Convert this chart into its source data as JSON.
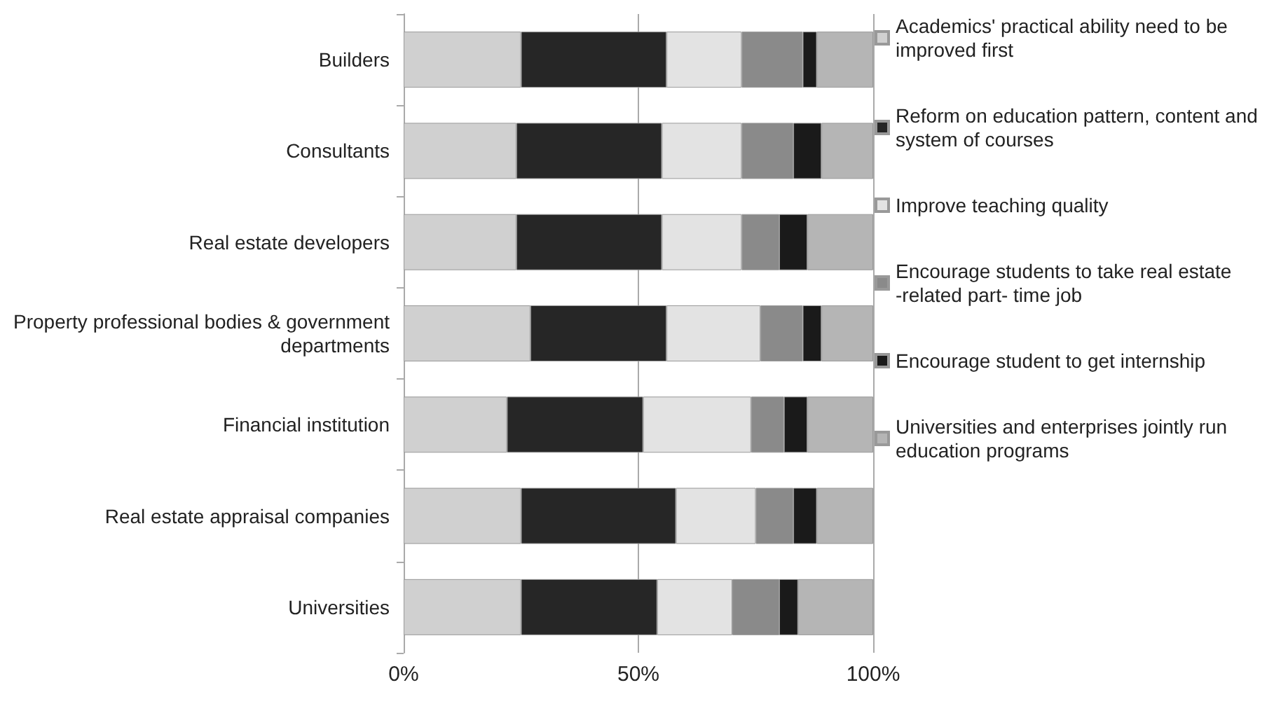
{
  "chart_data": {
    "type": "bar",
    "orientation": "horizontal",
    "stacked": true,
    "categories": [
      "Builders",
      "Consultants",
      "Real estate developers",
      "Property professional bodies & government departments",
      "Financial institution",
      "Real estate appraisal companies",
      "Universities"
    ],
    "series": [
      {
        "name": "Academics' practical ability need to be improved first",
        "color": "#d0d0d0",
        "values": [
          25,
          24,
          24,
          27,
          22,
          25,
          25
        ]
      },
      {
        "name": "Reform on education pattern, content and system of courses",
        "color": "#262626",
        "values": [
          31,
          31,
          31,
          29,
          29,
          33,
          29
        ]
      },
      {
        "name": "Improve teaching quality",
        "color": "#e3e3e3",
        "values": [
          16,
          17,
          17,
          20,
          23,
          17,
          16
        ]
      },
      {
        "name": "Encourage students to take real estate -related part- time job",
        "color": "#8a8a8a",
        "values": [
          13,
          11,
          8,
          9,
          7,
          8,
          10
        ]
      },
      {
        "name": "Encourage student to get internship",
        "color": "#1a1a1a",
        "values": [
          3,
          6,
          6,
          4,
          5,
          5,
          4
        ]
      },
      {
        "name": "Universities and enterprises jointly run education programs",
        "color": "#b5b5b5",
        "values": [
          12,
          11,
          14,
          11,
          14,
          12,
          16
        ]
      }
    ],
    "xlim": [
      0,
      100
    ],
    "xticks": [
      {
        "value": 0,
        "label": "0%"
      },
      {
        "value": 50,
        "label": "50%"
      },
      {
        "value": 100,
        "label": "100%"
      }
    ],
    "grid": "x",
    "legend": "right"
  }
}
